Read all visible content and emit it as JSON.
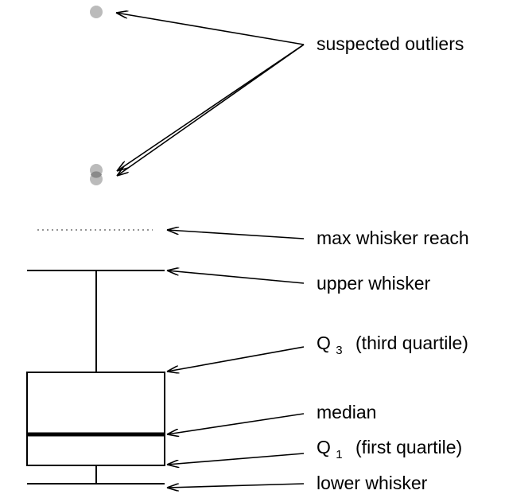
{
  "labels": {
    "suspected_outliers": "suspected outliers",
    "max_whisker_reach": "max whisker reach",
    "upper_whisker": "upper whisker",
    "q3_main": "Q",
    "q3_sub": "3",
    "q3_text": "(third quartile)",
    "median": "median",
    "q1_main": "Q",
    "q1_sub": "1",
    "q1_text": "(first quartile)",
    "lower_whisker": "lower whisker"
  },
  "colors": {
    "ink": "#000000",
    "outlier": "#bbbbbb",
    "outlier_overlap": "#888888",
    "dotted": "#555555"
  }
}
